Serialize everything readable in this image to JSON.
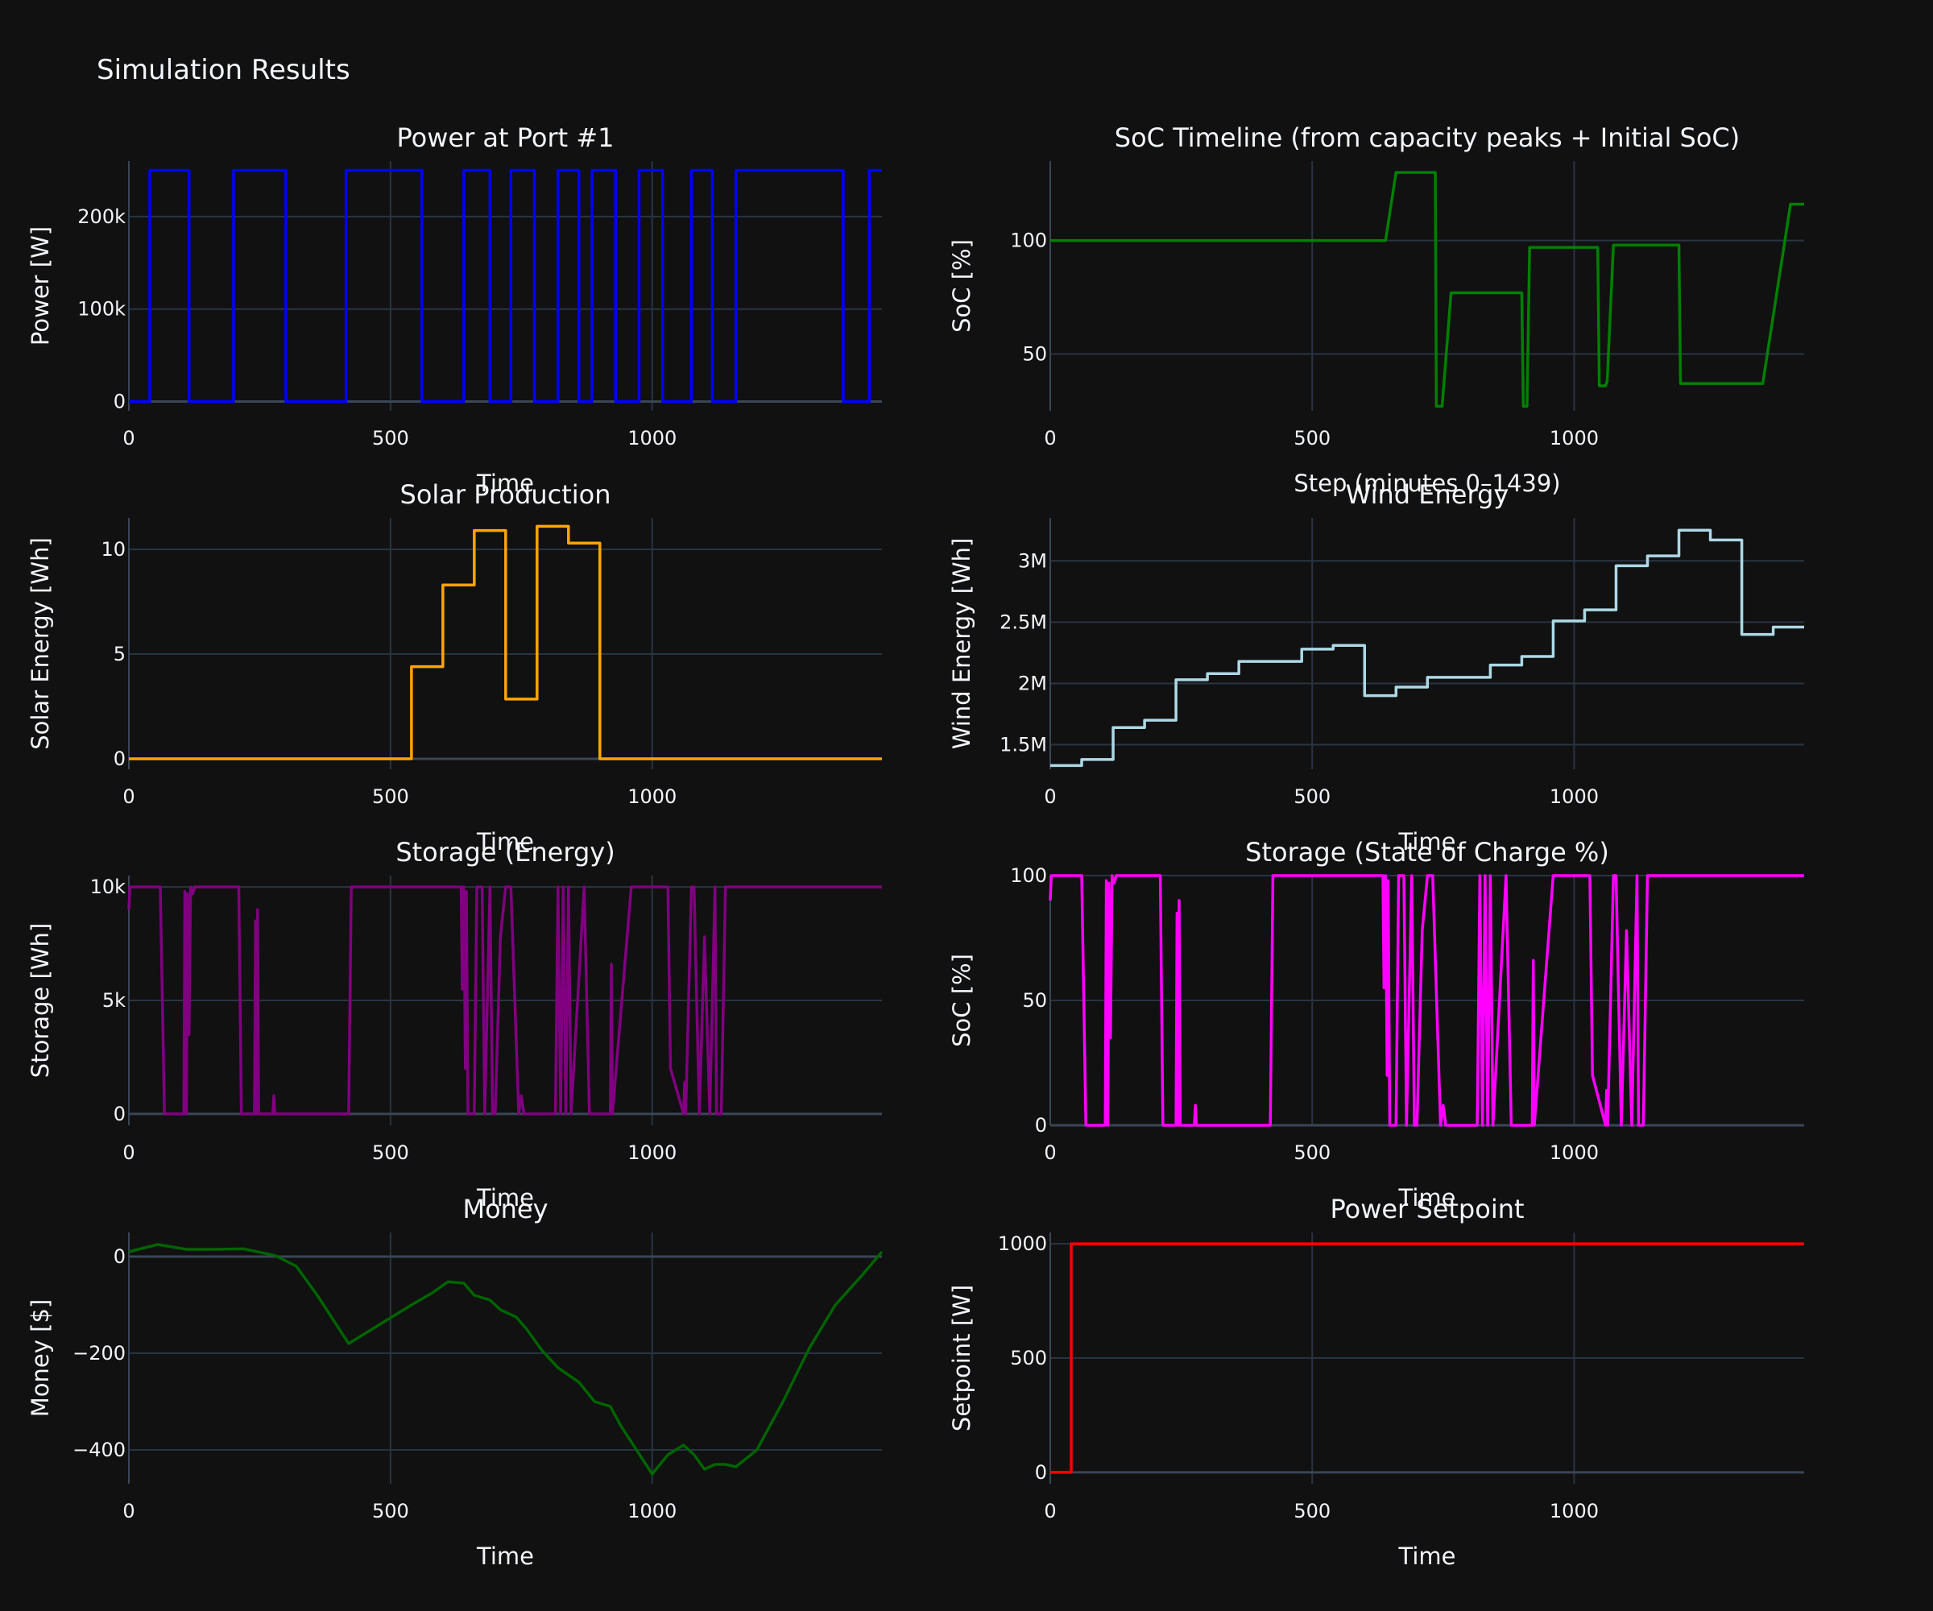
{
  "page_title": "Simulation Results",
  "chart_data": [
    {
      "id": "power",
      "type": "line",
      "title": "Power at Port #1",
      "xlabel": "Time",
      "ylabel": "Power [W]",
      "xlim": [
        0,
        1439
      ],
      "ylim": [
        -10000,
        260000
      ],
      "xticks": [
        0,
        500,
        1000
      ],
      "xtick_labels": [
        "0",
        "500",
        "1000"
      ],
      "yticks": [
        0,
        100000,
        200000
      ],
      "ytick_labels": [
        "0",
        "100k",
        "200k"
      ],
      "grid": true,
      "color": "#0000ff",
      "step": true,
      "x": [
        0,
        40,
        115,
        200,
        300,
        415,
        560,
        640,
        690,
        730,
        775,
        820,
        860,
        885,
        930,
        975,
        1020,
        1075,
        1115,
        1160,
        1365,
        1415
      ],
      "y": [
        0,
        250000,
        0,
        250000,
        0,
        250000,
        0,
        250000,
        0,
        250000,
        0,
        250000,
        0,
        250000,
        0,
        250000,
        0,
        250000,
        0,
        250000,
        0,
        250000
      ]
    },
    {
      "id": "soc_timeline",
      "type": "line",
      "title": "SoC Timeline (from capacity peaks + Initial SoC)",
      "xlabel": "Step (minutes 0–1439)",
      "ylabel": "SoC [%]",
      "xlim": [
        0,
        1439
      ],
      "ylim": [
        25,
        135
      ],
      "xticks": [
        0,
        500,
        1000
      ],
      "xtick_labels": [
        "0",
        "500",
        "1000"
      ],
      "yticks": [
        50,
        100
      ],
      "ytick_labels": [
        "50",
        "100"
      ],
      "grid": true,
      "color": "#008000",
      "step": false,
      "x": [
        0,
        640,
        660,
        735,
        737,
        748,
        765,
        900,
        903,
        910,
        915,
        1045,
        1048,
        1060,
        1063,
        1075,
        1200,
        1203,
        1220,
        1360,
        1413,
        1439
      ],
      "y": [
        100,
        100,
        130,
        130,
        27,
        27,
        77,
        77,
        27,
        27,
        97,
        97,
        36,
        36,
        38,
        98,
        98,
        37,
        37,
        37,
        116,
        116
      ]
    },
    {
      "id": "solar",
      "type": "line",
      "title": "Solar Production",
      "xlabel": "Time",
      "ylabel": "Solar Energy [Wh]",
      "xlim": [
        0,
        1439
      ],
      "ylim": [
        -0.5,
        11.5
      ],
      "xticks": [
        0,
        500,
        1000
      ],
      "xtick_labels": [
        "0",
        "500",
        "1000"
      ],
      "yticks": [
        0,
        5,
        10
      ],
      "ytick_labels": [
        "0",
        "5",
        "10"
      ],
      "grid": true,
      "color": "#ffa500",
      "step": true,
      "x": [
        0,
        540,
        600,
        660,
        720,
        780,
        840,
        900
      ],
      "y": [
        0,
        4.4,
        8.3,
        10.9,
        2.85,
        11.1,
        10.3,
        0
      ]
    },
    {
      "id": "wind",
      "type": "line",
      "title": "Wind Energy",
      "xlabel": "Time",
      "ylabel": "Wind Energy [Wh]",
      "xlim": [
        0,
        1439
      ],
      "ylim": [
        1300000,
        3350000
      ],
      "xticks": [
        0,
        500,
        1000
      ],
      "xtick_labels": [
        "0",
        "500",
        "1000"
      ],
      "yticks": [
        1500000,
        2000000,
        2500000,
        3000000
      ],
      "ytick_labels": [
        "1.5M",
        "2M",
        "2.5M",
        "3M"
      ],
      "grid": true,
      "color": "#add8e6",
      "step": true,
      "x": [
        0,
        60,
        120,
        180,
        240,
        300,
        360,
        480,
        540,
        600,
        660,
        720,
        840,
        900,
        960,
        1020,
        1080,
        1140,
        1200,
        1260,
        1320,
        1380,
        1439
      ],
      "y": [
        1330000,
        1380000,
        1640000,
        1700000,
        2030000,
        2080000,
        2180000,
        2280000,
        2310000,
        1900000,
        1970000,
        2050000,
        2150000,
        2220000,
        2510000,
        2600000,
        2960000,
        3040000,
        3250000,
        3170000,
        2400000,
        2460000,
        2460000
      ]
    },
    {
      "id": "storage_energy",
      "type": "line",
      "title": "Storage (Energy)",
      "xlabel": "Time",
      "ylabel": "Storage [Wh]",
      "xlim": [
        0,
        1439
      ],
      "ylim": [
        -500,
        10500
      ],
      "xticks": [
        0,
        500,
        1000
      ],
      "xtick_labels": [
        "0",
        "500",
        "1000"
      ],
      "yticks": [
        0,
        5000,
        10000
      ],
      "ytick_labels": [
        "0",
        "5k",
        "10k"
      ],
      "grid": true,
      "color": "#800080",
      "step": false,
      "x": [
        0,
        2,
        60,
        68,
        105,
        107,
        110,
        112,
        115,
        118,
        122,
        126,
        210,
        215,
        240,
        242,
        244,
        246,
        248,
        275,
        277,
        279,
        420,
        425,
        635,
        637,
        640,
        643,
        645,
        648,
        660,
        665,
        675,
        680,
        690,
        695,
        700,
        710,
        720,
        725,
        730,
        745,
        750,
        755,
        760,
        815,
        820,
        825,
        830,
        835,
        840,
        845,
        870,
        880,
        920,
        922,
        924,
        960,
        970,
        1030,
        1035,
        1060,
        1062,
        1064,
        1075,
        1080,
        1090,
        1100,
        1110,
        1120,
        1123,
        1132,
        1140,
        1439
      ],
      "y": [
        9000,
        10000,
        10000,
        0,
        0,
        9800,
        0,
        9700,
        3500,
        10000,
        9700,
        10000,
        10000,
        0,
        0,
        8500,
        0,
        9000,
        0,
        0,
        800,
        0,
        0,
        10000,
        10000,
        5500,
        10000,
        2000,
        9800,
        0,
        0,
        10000,
        10000,
        0,
        10000,
        0,
        0,
        7800,
        10000,
        10000,
        10000,
        0,
        800,
        0,
        0,
        0,
        10000,
        0,
        10000,
        0,
        10000,
        0,
        10000,
        0,
        0,
        6600,
        0,
        10000,
        10000,
        10000,
        2000,
        0,
        1400,
        0,
        10000,
        10000,
        0,
        7800,
        0,
        10000,
        0,
        0,
        10000,
        10000
      ]
    },
    {
      "id": "storage_soc",
      "type": "line",
      "title": "Storage (State of Charge %)",
      "xlabel": "Time",
      "ylabel": "SoC [%]",
      "xlim": [
        0,
        1439
      ],
      "ylim": [
        0,
        100
      ],
      "xticks": [
        0,
        500,
        1000
      ],
      "xtick_labels": [
        "0",
        "500",
        "1000"
      ],
      "yticks": [
        0,
        50,
        100
      ],
      "ytick_labels": [
        "0",
        "50",
        "100"
      ],
      "grid": true,
      "color": "#ff00ff",
      "step": false,
      "x": [
        0,
        2,
        60,
        68,
        105,
        107,
        110,
        112,
        115,
        118,
        122,
        126,
        210,
        215,
        240,
        242,
        244,
        246,
        248,
        275,
        277,
        279,
        420,
        425,
        635,
        637,
        640,
        643,
        645,
        648,
        660,
        665,
        675,
        680,
        690,
        695,
        700,
        710,
        720,
        725,
        730,
        745,
        750,
        755,
        760,
        815,
        820,
        825,
        830,
        835,
        840,
        845,
        870,
        880,
        920,
        922,
        924,
        960,
        970,
        1030,
        1035,
        1060,
        1062,
        1064,
        1075,
        1080,
        1090,
        1100,
        1110,
        1120,
        1123,
        1132,
        1140,
        1439
      ],
      "y": [
        90,
        100,
        100,
        0,
        0,
        98,
        0,
        97,
        35,
        100,
        97,
        100,
        100,
        0,
        0,
        85,
        0,
        90,
        0,
        0,
        8,
        0,
        0,
        100,
        100,
        55,
        100,
        20,
        98,
        0,
        0,
        100,
        100,
        0,
        100,
        0,
        0,
        78,
        100,
        100,
        100,
        0,
        8,
        0,
        0,
        0,
        100,
        0,
        100,
        0,
        100,
        0,
        100,
        0,
        0,
        66,
        0,
        100,
        100,
        100,
        20,
        0,
        14,
        0,
        100,
        100,
        0,
        78,
        0,
        100,
        0,
        0,
        100,
        100
      ]
    },
    {
      "id": "money",
      "type": "line",
      "title": "Money",
      "xlabel": "Time",
      "ylabel": "Money [$]",
      "xlim": [
        0,
        1439
      ],
      "ylim": [
        -470,
        50
      ],
      "xticks": [
        0,
        500,
        1000
      ],
      "xtick_labels": [
        "0",
        "500",
        "1000"
      ],
      "yticks": [
        -400,
        -200,
        0
      ],
      "ytick_labels": [
        "−400",
        "−200",
        "0"
      ],
      "grid": true,
      "color": "#006400",
      "step": false,
      "x": [
        0,
        55,
        110,
        160,
        220,
        280,
        320,
        360,
        420,
        480,
        540,
        580,
        610,
        640,
        660,
        690,
        710,
        740,
        760,
        790,
        820,
        860,
        890,
        920,
        940,
        970,
        1000,
        1030,
        1060,
        1080,
        1100,
        1120,
        1140,
        1160,
        1200,
        1250,
        1300,
        1350,
        1400,
        1439
      ],
      "y": [
        10,
        25,
        15,
        15,
        16,
        2,
        -20,
        -80,
        -180,
        -140,
        -100,
        -75,
        -52,
        -55,
        -80,
        -90,
        -110,
        -125,
        -150,
        -195,
        -230,
        -260,
        -300,
        -310,
        -350,
        -400,
        -450,
        -410,
        -390,
        -410,
        -440,
        -430,
        -430,
        -435,
        -400,
        -300,
        -190,
        -100,
        -40,
        10
      ]
    },
    {
      "id": "setpoint",
      "type": "line",
      "title": "Power Setpoint",
      "xlabel": "Time",
      "ylabel": "Setpoint [W]",
      "xlim": [
        0,
        1439
      ],
      "ylim": [
        -50,
        1050
      ],
      "xticks": [
        0,
        500,
        1000
      ],
      "xtick_labels": [
        "0",
        "500",
        "1000"
      ],
      "yticks": [
        0,
        500,
        1000
      ],
      "ytick_labels": [
        "0",
        "500",
        "1000"
      ],
      "grid": true,
      "color": "#ff0000",
      "step": true,
      "x": [
        0,
        40
      ],
      "y": [
        0,
        1000
      ]
    }
  ]
}
